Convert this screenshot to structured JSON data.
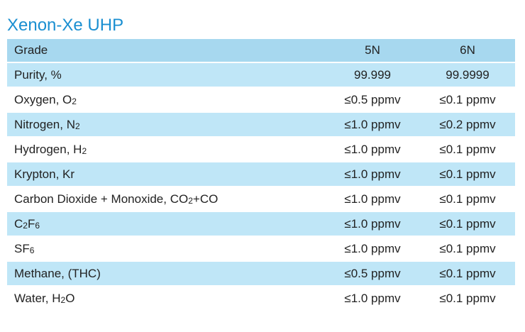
{
  "title": "Xenon-Xe UHP",
  "header": {
    "grade": "Grade",
    "col_5n": "5N",
    "col_6n": "6N"
  },
  "rows": [
    {
      "name": "Purity, %",
      "v5n": "99.999",
      "v6n": "99.9999"
    },
    {
      "name": "Oxygen, O",
      "name_parts": [
        {
          "t": "Oxygen, O"
        },
        {
          "s": "2"
        }
      ],
      "v5n": "≤0.5 ppmv",
      "v6n": "≤0.1 ppmv"
    },
    {
      "name": "Nitrogen, N",
      "name_parts": [
        {
          "t": "Nitrogen, N"
        },
        {
          "s": "2"
        }
      ],
      "v5n": "≤1.0 ppmv",
      "v6n": "≤0.2 ppmv"
    },
    {
      "name": "Hydrogen, H",
      "name_parts": [
        {
          "t": "Hydrogen, H"
        },
        {
          "s": "2"
        }
      ],
      "v5n": "≤1.0 ppmv",
      "v6n": "≤0.1 ppmv"
    },
    {
      "name": "Krypton, Kr",
      "v5n": "≤1.0 ppmv",
      "v6n": "≤0.1 ppmv"
    },
    {
      "name": "Carbon Dioxide + Monoxide, CO",
      "name_parts": [
        {
          "t": "Carbon Dioxide + Monoxide, CO"
        },
        {
          "s": "2"
        },
        {
          "t": "+CO"
        }
      ],
      "v5n": "≤1.0 ppmv",
      "v6n": "≤0.1 ppmv"
    },
    {
      "name": "C",
      "name_parts": [
        {
          "t": "C"
        },
        {
          "s": "2"
        },
        {
          "t": "F"
        },
        {
          "s": "6"
        }
      ],
      "v5n": "≤1.0 ppmv",
      "v6n": "≤0.1 ppmv"
    },
    {
      "name": "SF",
      "name_parts": [
        {
          "t": "SF"
        },
        {
          "s": "6"
        }
      ],
      "v5n": "≤1.0 ppmv",
      "v6n": "≤0.1 ppmv"
    },
    {
      "name": "Methane, (THC)",
      "v5n": "≤0.5 ppmv",
      "v6n": "≤0.1 ppmv"
    },
    {
      "name": "Water, H",
      "name_parts": [
        {
          "t": "Water, H"
        },
        {
          "s": "2"
        },
        {
          "t": "O"
        }
      ],
      "v5n": "≤1.0 ppmv",
      "v6n": "≤0.1 ppmv"
    }
  ]
}
